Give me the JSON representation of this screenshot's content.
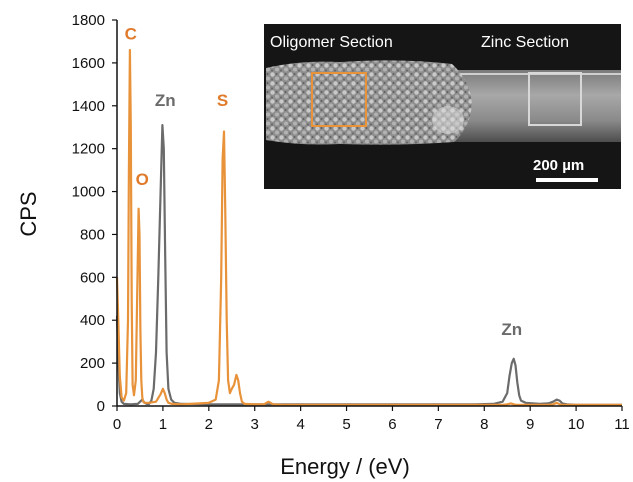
{
  "chart_data": {
    "type": "line",
    "xlabel": "Energy / (eV)",
    "ylabel": "CPS",
    "xlim": [
      0,
      11
    ],
    "ylim": [
      0,
      1800
    ],
    "x_ticks": [
      0,
      1,
      2,
      3,
      4,
      5,
      6,
      7,
      8,
      9,
      10,
      11
    ],
    "y_ticks": [
      0,
      200,
      400,
      600,
      800,
      1000,
      1200,
      1400,
      1600,
      1800
    ],
    "grid": false,
    "colors": {
      "orange": "#e8923a",
      "gray": "#6b6b6b",
      "orange_label": "#e07b2c",
      "gray_label": "#6b6b6b"
    },
    "series": [
      {
        "color": "#e8923a",
        "x": [
          0,
          0.03,
          0.06,
          0.1,
          0.15,
          0.2,
          0.24,
          0.26,
          0.28,
          0.3,
          0.32,
          0.34,
          0.37,
          0.41,
          0.44,
          0.47,
          0.49,
          0.51,
          0.53,
          0.55,
          0.57,
          0.6,
          0.7,
          0.85,
          0.95,
          1.0,
          1.04,
          1.08,
          1.12,
          1.2,
          1.4,
          1.6,
          1.8,
          2.0,
          2.15,
          2.22,
          2.27,
          2.3,
          2.33,
          2.36,
          2.39,
          2.42,
          2.46,
          2.5,
          2.55,
          2.6,
          2.64,
          2.68,
          2.72,
          2.78,
          3.0,
          3.2,
          3.3,
          3.4,
          3.6,
          4.0,
          5.0,
          6.0,
          7.0,
          8.0,
          8.4,
          8.5,
          8.58,
          8.64,
          8.7,
          8.8,
          9.0,
          9.4,
          9.5,
          9.58,
          9.64,
          9.7,
          10.0,
          11.0
        ],
        "values": [
          600,
          380,
          140,
          40,
          25,
          60,
          400,
          1100,
          1660,
          1300,
          500,
          100,
          50,
          120,
          520,
          920,
          800,
          350,
          120,
          40,
          20,
          15,
          15,
          20,
          55,
          80,
          60,
          30,
          15,
          10,
          8,
          10,
          12,
          15,
          30,
          120,
          600,
          1150,
          1280,
          900,
          400,
          120,
          60,
          80,
          100,
          145,
          120,
          60,
          20,
          10,
          8,
          8,
          20,
          8,
          5,
          5,
          5,
          5,
          5,
          5,
          5,
          8,
          12,
          8,
          5,
          5,
          5,
          5,
          8,
          15,
          8,
          5,
          5,
          5
        ]
      },
      {
        "color": "#6b6b6b",
        "x": [
          0,
          0.03,
          0.06,
          0.1,
          0.15,
          0.3,
          0.45,
          0.55,
          0.6,
          0.65,
          0.7,
          0.75,
          0.8,
          0.85,
          0.9,
          0.95,
          0.99,
          1.02,
          1.05,
          1.08,
          1.12,
          1.18,
          1.25,
          1.4,
          2.0,
          3.0,
          4.0,
          5.0,
          6.0,
          7.0,
          7.8,
          8.2,
          8.4,
          8.5,
          8.55,
          8.6,
          8.64,
          8.68,
          8.72,
          8.76,
          8.8,
          8.9,
          9.2,
          9.4,
          9.5,
          9.58,
          9.64,
          9.7,
          9.8,
          10.0,
          11.0
        ],
        "values": [
          420,
          200,
          60,
          20,
          10,
          8,
          10,
          30,
          15,
          10,
          10,
          25,
          80,
          250,
          600,
          1000,
          1310,
          1200,
          700,
          250,
          80,
          30,
          15,
          10,
          8,
          8,
          8,
          8,
          8,
          8,
          8,
          10,
          20,
          60,
          140,
          200,
          220,
          190,
          110,
          50,
          25,
          15,
          10,
          12,
          20,
          30,
          25,
          12,
          8,
          5,
          5
        ]
      }
    ],
    "annotations": [
      {
        "text": "C",
        "x": 0.3,
        "y": 1710,
        "color": "orange"
      },
      {
        "text": "O",
        "x": 0.55,
        "y": 1030,
        "color": "orange"
      },
      {
        "text": "Zn",
        "x": 1.05,
        "y": 1400,
        "color": "gray"
      },
      {
        "text": "S",
        "x": 2.3,
        "y": 1400,
        "color": "orange"
      },
      {
        "text": "Zn",
        "x": 8.6,
        "y": 330,
        "color": "gray"
      }
    ]
  },
  "inset": {
    "label_left": "Oligomer Section",
    "label_right": "Zinc Section",
    "scale_bar": "200 µm"
  }
}
